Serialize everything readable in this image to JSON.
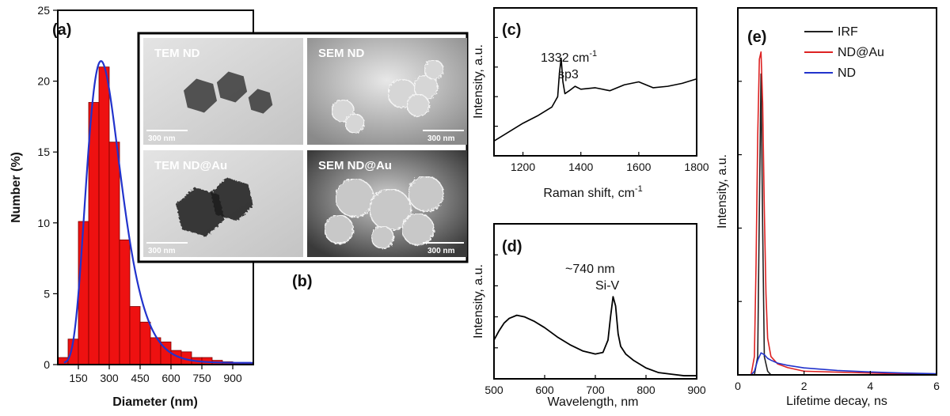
{
  "panels": {
    "a": {
      "label": "(a)"
    },
    "b": {
      "label": "(b)"
    },
    "c": {
      "label": "(c)",
      "annotation_line1": "1332 cm",
      "annotation_sup": "-1",
      "annotation_line2": "sp3"
    },
    "d": {
      "label": "(d)",
      "annotation_line1": "~740 nm",
      "annotation_line2": "Si-V"
    },
    "e": {
      "label": "(e)"
    }
  },
  "micrographs": [
    {
      "label": "TEM ND",
      "scale": "300 nm",
      "style": "tem"
    },
    {
      "label": "SEM ND",
      "scale": "300 nm",
      "style": "sem"
    },
    {
      "label": "TEM ND@Au",
      "scale": "300 nm",
      "style": "tem"
    },
    {
      "label": "SEM ND@Au",
      "scale": "300 nm",
      "style": "sem-dark"
    }
  ],
  "colors": {
    "histogram": "#ee1111",
    "fit": "#2233cc",
    "irf": "#222222",
    "nd_au": "#dd2222",
    "nd": "#2233cc"
  },
  "chart_data": [
    {
      "id": "a",
      "type": "bar",
      "xlabel": "Diameter (nm)",
      "ylabel": "Number (%)",
      "xlim": [
        50,
        1000
      ],
      "ylim": [
        0,
        25
      ],
      "xticks": [
        150,
        300,
        450,
        600,
        750,
        900
      ],
      "xtick_labels": [
        "150",
        "300",
        "450",
        "600",
        "750",
        "900"
      ],
      "yticks": [
        0,
        5,
        10,
        15,
        20,
        25
      ],
      "ytick_labels": [
        "0",
        "5",
        "10",
        "15",
        "20",
        "25"
      ],
      "bin_width": 50,
      "bin_centers": [
        75,
        125,
        175,
        225,
        275,
        325,
        375,
        425,
        475,
        525,
        575,
        625,
        675,
        725,
        775,
        825,
        875,
        925,
        975
      ],
      "values": [
        0.5,
        1.8,
        10.1,
        18.5,
        21.0,
        15.7,
        8.8,
        4.1,
        3.0,
        1.9,
        1.6,
        1.0,
        0.9,
        0.5,
        0.5,
        0.3,
        0.2,
        0.1,
        0.1
      ],
      "fit": {
        "type": "log-normal",
        "peak_x": 260,
        "peak_y": 21.3
      }
    },
    {
      "id": "c",
      "type": "line",
      "xlabel": "Raman shift, cm",
      "xlabel_sup": "-1",
      "ylabel": "Intensity, a.u.",
      "xlim": [
        1100,
        1800
      ],
      "ylim": [
        0,
        1
      ],
      "xticks": [
        1200,
        1400,
        1600,
        1800
      ],
      "xtick_labels": [
        "1200",
        "1400",
        "1600",
        "1800"
      ],
      "x": [
        1100,
        1150,
        1200,
        1250,
        1300,
        1320,
        1326,
        1332,
        1338,
        1345,
        1360,
        1380,
        1400,
        1450,
        1500,
        1550,
        1600,
        1650,
        1700,
        1750,
        1800
      ],
      "y": [
        0.1,
        0.16,
        0.22,
        0.27,
        0.33,
        0.4,
        0.56,
        0.66,
        0.5,
        0.42,
        0.44,
        0.47,
        0.45,
        0.46,
        0.44,
        0.48,
        0.5,
        0.46,
        0.47,
        0.49,
        0.52
      ]
    },
    {
      "id": "d",
      "type": "line",
      "xlabel": "Wavelength, nm",
      "ylabel": "Intensity, a.u.",
      "xlim": [
        500,
        900
      ],
      "ylim": [
        0,
        1
      ],
      "xticks": [
        500,
        600,
        700,
        800,
        900
      ],
      "xtick_labels": [
        "500",
        "600",
        "700",
        "800",
        "900"
      ],
      "x": [
        500,
        510,
        520,
        530,
        545,
        560,
        580,
        600,
        625,
        650,
        675,
        700,
        715,
        725,
        730,
        735,
        740,
        745,
        750,
        760,
        775,
        800,
        825,
        850,
        875,
        900
      ],
      "y": [
        0.25,
        0.31,
        0.36,
        0.39,
        0.41,
        0.4,
        0.37,
        0.33,
        0.27,
        0.22,
        0.18,
        0.16,
        0.17,
        0.25,
        0.4,
        0.53,
        0.47,
        0.29,
        0.21,
        0.16,
        0.12,
        0.07,
        0.04,
        0.03,
        0.02,
        0.02
      ]
    },
    {
      "id": "e",
      "type": "line",
      "xlabel": "Lifetime decay, ns",
      "ylabel": "Intensity, a.u.",
      "xlim": [
        0,
        6
      ],
      "ylim": [
        0,
        1
      ],
      "xticks": [
        0,
        2,
        4,
        6
      ],
      "xtick_labels": [
        "0",
        "2",
        "4",
        "6"
      ],
      "legend_position": "top-right",
      "series": [
        {
          "name": "IRF",
          "color": "#222222",
          "x": [
            0.0,
            0.5,
            0.6,
            0.65,
            0.7,
            0.75,
            0.8,
            0.9,
            1.0,
            1.5,
            6.0
          ],
          "y": [
            0.0,
            0.0,
            0.05,
            0.45,
            0.82,
            0.4,
            0.05,
            0.01,
            0.0,
            0.0,
            0.0
          ]
        },
        {
          "name": "ND@Au",
          "color": "#dd2222",
          "x": [
            0.0,
            0.4,
            0.5,
            0.55,
            0.6,
            0.65,
            0.7,
            0.75,
            0.8,
            0.85,
            0.9,
            1.0,
            1.2,
            1.5,
            2.0,
            6.0
          ],
          "y": [
            0.0,
            0.0,
            0.05,
            0.3,
            0.65,
            0.86,
            0.88,
            0.74,
            0.45,
            0.22,
            0.1,
            0.05,
            0.03,
            0.02,
            0.01,
            0.0
          ]
        },
        {
          "name": "ND",
          "color": "#2233cc",
          "x": [
            0.0,
            0.4,
            0.5,
            0.6,
            0.7,
            0.8,
            0.9,
            1.0,
            1.2,
            1.5,
            2.0,
            3.0,
            4.0,
            5.0,
            6.0
          ],
          "y": [
            0.0,
            0.0,
            0.01,
            0.04,
            0.06,
            0.055,
            0.045,
            0.04,
            0.032,
            0.026,
            0.019,
            0.012,
            0.008,
            0.005,
            0.003
          ]
        }
      ]
    }
  ]
}
